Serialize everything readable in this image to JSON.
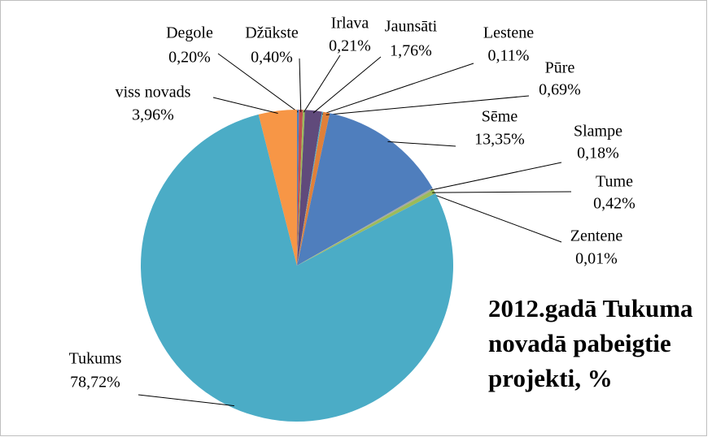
{
  "chart_data": {
    "type": "pie",
    "title": "2012.gadā Tukuma novadā pabeigtie projekti, %",
    "categories": [
      "Degole",
      "Džūkste",
      "Irlava",
      "Jaunsāti",
      "Lestene",
      "Pūre",
      "Sēme",
      "Slampe",
      "Tume",
      "Zentene",
      "Tukums",
      "viss novads"
    ],
    "values": [
      0.2,
      0.4,
      0.21,
      1.76,
      0.11,
      0.69,
      13.35,
      0.18,
      0.42,
      0.01,
      78.72,
      3.96
    ],
    "value_labels": [
      "0,20%",
      "0,40%",
      "0,21%",
      "1,76%",
      "0,11%",
      "0,69%",
      "13,35%",
      "0,18%",
      "0,42%",
      "0,01%",
      "78,72%",
      "3,96%"
    ],
    "colors": [
      "#4F81BD",
      "#C0504D",
      "#9BBB59",
      "#604A7B",
      "#4BACC6",
      "#E0803A",
      "#4F7EBD",
      "#A5A5A5",
      "#9BBB59",
      "#8064A2",
      "#4BACC6",
      "#F79646"
    ]
  }
}
